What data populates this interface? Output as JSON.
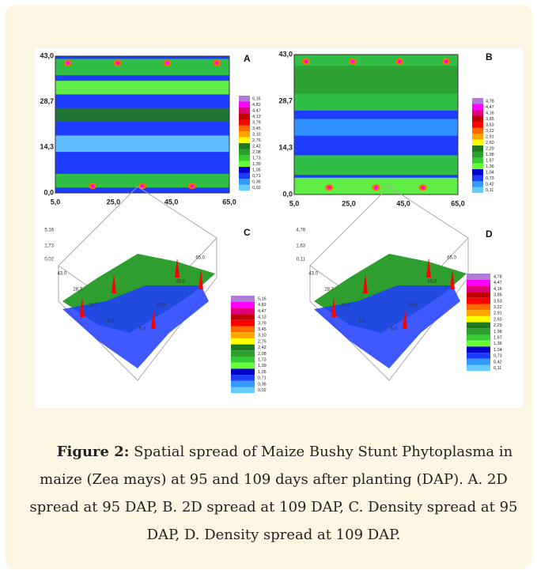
{
  "figure": {
    "panels": [
      {
        "label": "A",
        "y_ticks": [
          "43,0",
          "28,7",
          "14,3",
          "0,0"
        ],
        "x_ticks": [
          "5,0",
          "25,0",
          "45,0",
          "65,0"
        ],
        "legend": [
          "5,16",
          "4,82",
          "4,47",
          "4,13",
          "3,79",
          "3,45",
          "3,10",
          "2,76",
          "2,42",
          "2,08",
          "1,73",
          "1,39",
          "1,05",
          "0,71",
          "0,36",
          "0,02"
        ]
      },
      {
        "label": "B",
        "y_ticks": [
          "43,0",
          "28,7",
          "14,3",
          "0,0"
        ],
        "x_ticks": [
          "5,0",
          "25,0",
          "45,0",
          "65,0"
        ],
        "legend": [
          "4,78",
          "4,47",
          "4,16",
          "3,85",
          "3,53",
          "3,22",
          "2,91",
          "2,60",
          "2,29",
          "1,98",
          "1,67",
          "1,36",
          "1,04",
          "0,73",
          "0,42",
          "0,11"
        ]
      },
      {
        "label": "C",
        "axis_labels": [
          "5,16",
          "1,73",
          "0,02",
          "43,0",
          "28,7",
          "14,3",
          "0,0",
          "5,0",
          "25,0",
          "45,0",
          "65,0"
        ],
        "legend": [
          "5,16",
          "4,82",
          "4,47",
          "4,13",
          "3,79",
          "3,45",
          "3,10",
          "2,76",
          "2,42",
          "2,08",
          "1,73",
          "1,39",
          "1,05",
          "0,71",
          "0,36",
          "0,02"
        ]
      },
      {
        "label": "D",
        "axis_labels": [
          "4,78",
          "1,63",
          "0,11",
          "43,0",
          "28,7",
          "14,3",
          "0,0",
          "5,0",
          "25,0",
          "45,0",
          "65,0"
        ],
        "legend": [
          "4,78",
          "4,47",
          "4,16",
          "3,85",
          "3,53",
          "3,22",
          "2,91",
          "2,60",
          "2,29",
          "1,98",
          "1,67",
          "1,36",
          "1,04",
          "0,73",
          "0,42",
          "0,11"
        ]
      }
    ],
    "caption": {
      "label": "Figure 2:",
      "text": " Spatial spread of Maize Bushy Stunt Phytoplasma in maize (Zea mays) at 95 and 109 days after planting (DAP). A. 2D spread at 95 DAP, B. 2D spread at 109 DAP, C. Density spread at 95 DAP, D. Density spread at 109 DAP."
    }
  }
}
